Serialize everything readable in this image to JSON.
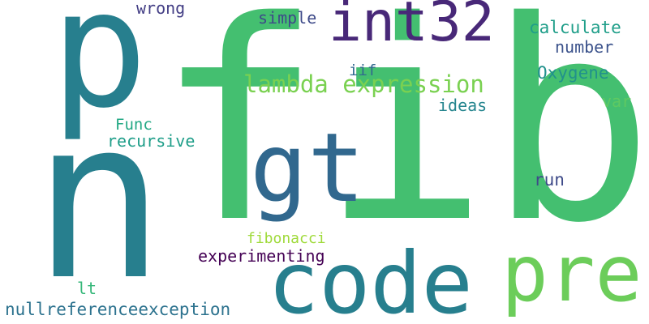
{
  "words": {
    "fib": "fib",
    "n": "n",
    "p": "p",
    "gt": "gt",
    "code": "code",
    "pre": "pre",
    "int32": "int32",
    "lambda_expression": "lambda expression",
    "fibonacci": "fibonacci",
    "experimenting": "experimenting",
    "nullreferenceexception": "nullreferenceexception",
    "recursive": "recursive",
    "func": "Func",
    "wrong": "wrong",
    "simple": "simple",
    "calculate": "calculate",
    "number": "number",
    "oxygene": "Oxygene",
    "iif": "iif",
    "ideas": "ideas",
    "var": "var",
    "run": "run",
    "lt": "lt"
  },
  "colors": {
    "fib": "#44bf70",
    "n": "#277f8e",
    "p": "#277f8e",
    "gt": "#31688e",
    "code": "#277f8e",
    "pre": "#6ccd5a",
    "int32": "#482878",
    "lambda_expression": "#7ad151",
    "fibonacci": "#9fda3a",
    "experimenting": "#440154",
    "nullreferenceexception": "#2c728e",
    "recursive": "#1f9e89",
    "func": "#22a884",
    "wrong": "#433e85",
    "simple": "#3e4a89",
    "calculate": "#1f9e89",
    "number": "#3b528b",
    "oxygene": "#21918c",
    "iif": "#31688e",
    "ideas": "#25858e",
    "var": "#5ec962",
    "run": "#3e4a89",
    "lt": "#35b779"
  }
}
